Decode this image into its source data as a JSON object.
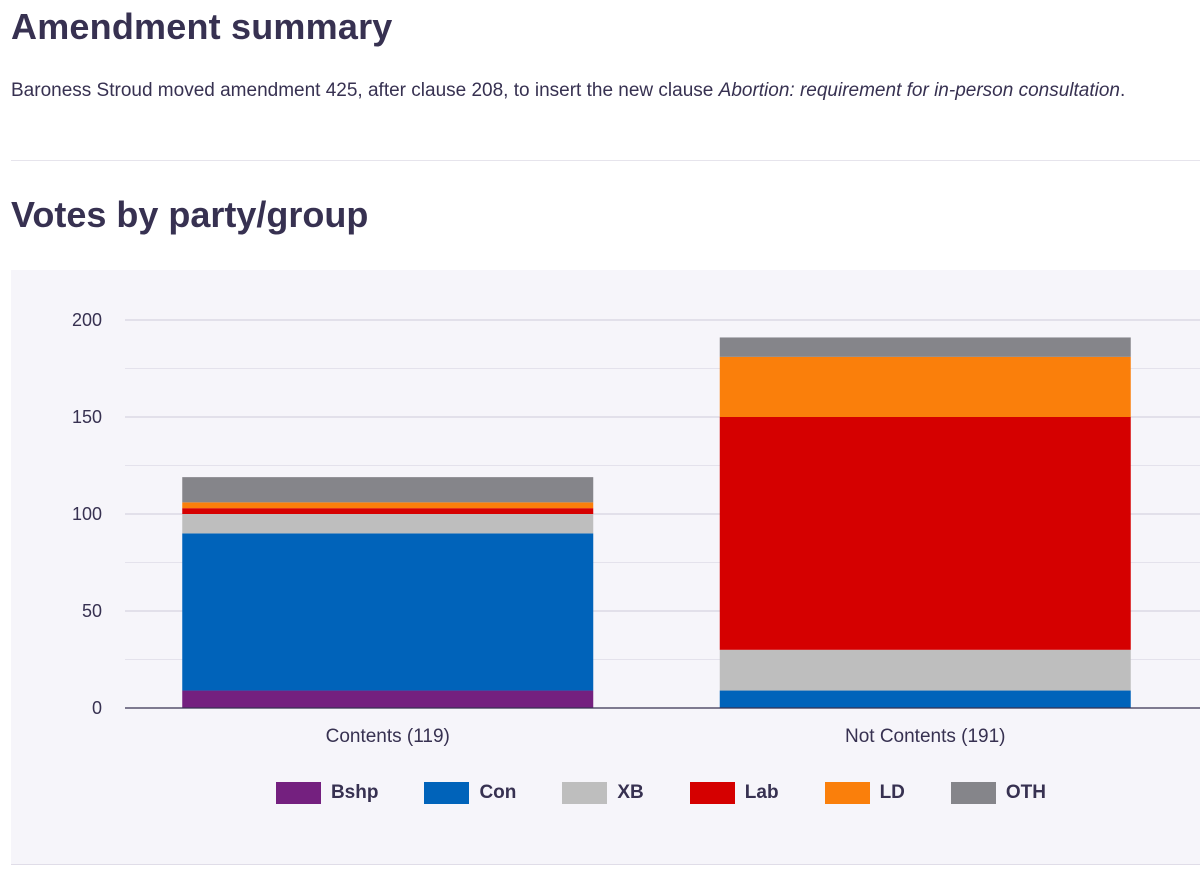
{
  "page": {
    "heading": "Amendment summary",
    "summary_pre": "Baroness Stroud moved amendment 425, after clause 208, to insert the new clause ",
    "summary_em": "Abortion: requirement for in-person consultation",
    "summary_post": ".",
    "votes_heading": "Votes by party/group"
  },
  "chart_data": {
    "type": "bar",
    "stacked": true,
    "title": "Votes by party/group",
    "categories": [
      "Contents (119)",
      "Not Contents (191)"
    ],
    "series": [
      {
        "name": "Bshp",
        "color": "#74207f",
        "values": [
          9,
          0
        ]
      },
      {
        "name": "Con",
        "color": "#0063ba",
        "values": [
          81,
          9
        ]
      },
      {
        "name": "XB",
        "color": "#bebebe",
        "values": [
          10,
          21
        ]
      },
      {
        "name": "Lab",
        "color": "#d50000",
        "values": [
          3,
          120
        ]
      },
      {
        "name": "LD",
        "color": "#fa7f0b",
        "values": [
          3,
          31
        ]
      },
      {
        "name": "OTH",
        "color": "#85858a",
        "values": [
          13,
          10
        ]
      }
    ],
    "yticks": [
      0,
      50,
      100,
      150,
      200
    ],
    "ylim": [
      0,
      200
    ],
    "grid": true,
    "xlabel": "",
    "ylabel": "",
    "legend": "bottom"
  }
}
